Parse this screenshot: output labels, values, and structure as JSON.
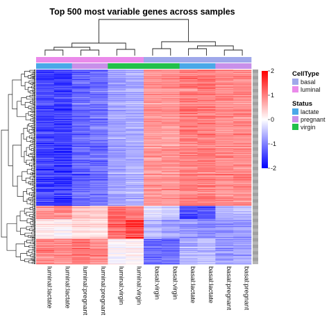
{
  "chart_data": {
    "type": "heatmap",
    "title": "Top 500 most variable genes across samples",
    "samples": [
      {
        "name": "luminal:lactate",
        "celltype": "luminal",
        "status": "lactate"
      },
      {
        "name": "luminal:lactate",
        "celltype": "luminal",
        "status": "lactate"
      },
      {
        "name": "luminal:pregnant",
        "celltype": "luminal",
        "status": "pregnant"
      },
      {
        "name": "luminal:pregnant",
        "celltype": "luminal",
        "status": "pregnant"
      },
      {
        "name": "luminal:virgin",
        "celltype": "luminal",
        "status": "virgin"
      },
      {
        "name": "luminal:virgin",
        "celltype": "luminal",
        "status": "virgin"
      },
      {
        "name": "basal:virgin",
        "celltype": "basal",
        "status": "virgin"
      },
      {
        "name": "basal:virgin",
        "celltype": "basal",
        "status": "virgin"
      },
      {
        "name": "basal:lactate",
        "celltype": "basal",
        "status": "lactate"
      },
      {
        "name": "basal:lactate",
        "celltype": "basal",
        "status": "lactate"
      },
      {
        "name": "basal:pregnant",
        "celltype": "basal",
        "status": "pregnant"
      },
      {
        "name": "basal:pregnant",
        "celltype": "basal",
        "status": "pregnant"
      }
    ],
    "n_genes": 500,
    "row_blocks": [
      {
        "fraction": 0.7,
        "values": [
          -1.6,
          -1.7,
          -1.3,
          -1.2,
          -0.8,
          -0.7,
          0.9,
          0.9,
          1.1,
          1.1,
          1.0,
          1.0
        ]
      },
      {
        "fraction": 0.07,
        "values": [
          0.9,
          1.0,
          0.5,
          0.4,
          1.2,
          1.1,
          -0.3,
          -0.4,
          -1.6,
          -1.5,
          -0.7,
          -0.6
        ]
      },
      {
        "fraction": 0.1,
        "values": [
          0.2,
          0.1,
          0.3,
          0.3,
          1.3,
          1.6,
          -0.6,
          -0.8,
          -0.9,
          -1.0,
          -0.9,
          -0.9
        ]
      },
      {
        "fraction": 0.13,
        "values": [
          1.1,
          1.0,
          1.1,
          1.0,
          0.0,
          0.1,
          -1.3,
          -1.2,
          -0.7,
          -0.6,
          -0.9,
          -0.8
        ]
      }
    ],
    "color_scale": {
      "min": -2,
      "max": 2,
      "low": "#0000ff",
      "mid": "#ffffff",
      "high": "#ff0000",
      "ticks": [
        2,
        1,
        0,
        -1,
        -2
      ]
    },
    "annotations": {
      "CellType": [
        {
          "label": "basal",
          "color": "#9fa8ea"
        },
        {
          "label": "luminal",
          "color": "#ea8aea"
        }
      ],
      "Status": [
        {
          "label": "lactate",
          "color": "#4aa8e8"
        },
        {
          "label": "pregnant",
          "color": "#c890ea"
        },
        {
          "label": "virgin",
          "color": "#22c04a"
        }
      ]
    },
    "legend_placement": "right"
  }
}
